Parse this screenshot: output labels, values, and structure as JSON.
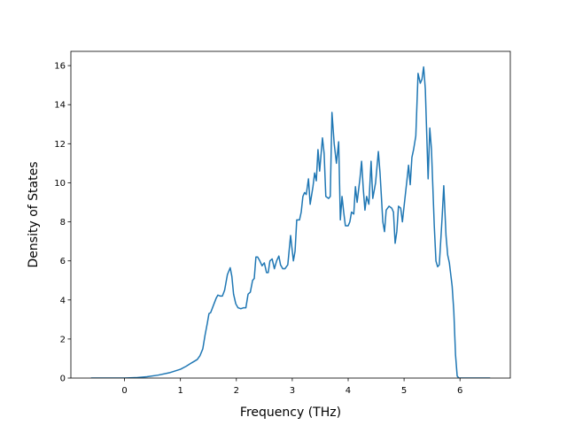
{
  "chart_data": {
    "type": "line",
    "xlabel": "Frequency (THz)",
    "ylabel": "Density of States",
    "color": "#1f77b4",
    "x": [
      -0.6,
      0,
      0.2,
      0.4,
      0.6,
      0.8,
      1.0,
      1.1,
      1.2,
      1.3,
      1.35,
      1.4,
      1.44,
      1.48,
      1.51,
      1.54,
      1.6,
      1.64,
      1.67,
      1.71,
      1.75,
      1.79,
      1.84,
      1.89,
      1.92,
      1.95,
      1.99,
      2.03,
      2.08,
      2.13,
      2.17,
      2.21,
      2.25,
      2.29,
      2.32,
      2.35,
      2.38,
      2.42,
      2.46,
      2.5,
      2.54,
      2.57,
      2.6,
      2.64,
      2.68,
      2.72,
      2.76,
      2.79,
      2.83,
      2.87,
      2.92,
      2.97,
      3.02,
      3.05,
      3.08,
      3.13,
      3.16,
      3.19,
      3.22,
      3.25,
      3.29,
      3.32,
      3.37,
      3.4,
      3.43,
      3.46,
      3.49,
      3.54,
      3.57,
      3.6,
      3.65,
      3.68,
      3.71,
      3.75,
      3.79,
      3.83,
      3.86,
      3.89,
      3.92,
      3.95,
      4.0,
      4.03,
      4.06,
      4.1,
      4.13,
      4.16,
      4.21,
      4.24,
      4.27,
      4.3,
      4.33,
      4.37,
      4.41,
      4.44,
      4.49,
      4.54,
      4.57,
      4.62,
      4.65,
      4.68,
      4.73,
      4.78,
      4.81,
      4.84,
      4.87,
      4.9,
      4.94,
      4.97,
      5.0,
      5.05,
      5.08,
      5.11,
      5.14,
      5.17,
      5.21,
      5.25,
      5.29,
      5.32,
      5.35,
      5.38,
      5.43,
      5.46,
      5.49,
      5.54,
      5.57,
      5.6,
      5.63,
      5.68,
      5.71,
      5.75,
      5.78,
      5.81,
      5.86,
      5.89,
      5.92,
      5.95,
      5.98,
      6.54
    ],
    "values": [
      0,
      0,
      0.02,
      0.07,
      0.15,
      0.27,
      0.45,
      0.6,
      0.78,
      0.95,
      1.15,
      1.5,
      2.2,
      2.8,
      3.3,
      3.35,
      3.8,
      4.1,
      4.25,
      4.2,
      4.2,
      4.5,
      5.3,
      5.65,
      5.2,
      4.3,
      3.8,
      3.6,
      3.55,
      3.6,
      3.6,
      4.3,
      4.4,
      5.0,
      5.1,
      6.2,
      6.2,
      6.0,
      5.75,
      5.9,
      5.4,
      5.4,
      6.0,
      6.1,
      5.6,
      6.0,
      6.25,
      5.8,
      5.6,
      5.6,
      5.8,
      7.3,
      6.0,
      6.5,
      8.1,
      8.1,
      8.5,
      9.3,
      9.5,
      9.4,
      10.2,
      8.9,
      9.8,
      10.5,
      10.1,
      11.7,
      10.6,
      12.3,
      11.5,
      9.3,
      9.2,
      9.3,
      13.6,
      12.0,
      11.0,
      12.1,
      8.1,
      9.3,
      8.5,
      7.8,
      7.8,
      8.0,
      8.5,
      8.4,
      9.8,
      9.0,
      10.2,
      11.1,
      9.7,
      8.6,
      9.3,
      8.9,
      11.1,
      9.2,
      10.0,
      11.6,
      10.5,
      8.0,
      7.5,
      8.6,
      8.8,
      8.7,
      8.5,
      6.9,
      7.5,
      8.8,
      8.7,
      8.0,
      8.8,
      10.1,
      10.9,
      9.9,
      11.3,
      11.7,
      12.4,
      15.6,
      15.1,
      15.3,
      15.93,
      14.8,
      10.2,
      12.8,
      11.7,
      7.8,
      6.0,
      5.7,
      5.8,
      8.2,
      9.85,
      7.3,
      6.3,
      5.9,
      4.7,
      3.4,
      1.2,
      0.1,
      0,
      0
    ],
    "xlim": [
      -0.96,
      6.9
    ],
    "xticks": [
      0,
      1,
      2,
      3,
      4,
      5,
      6
    ],
    "ylim": [
      0,
      16.73
    ],
    "yticks": [
      0,
      2,
      4,
      6,
      8,
      10,
      12,
      14,
      16
    ]
  }
}
